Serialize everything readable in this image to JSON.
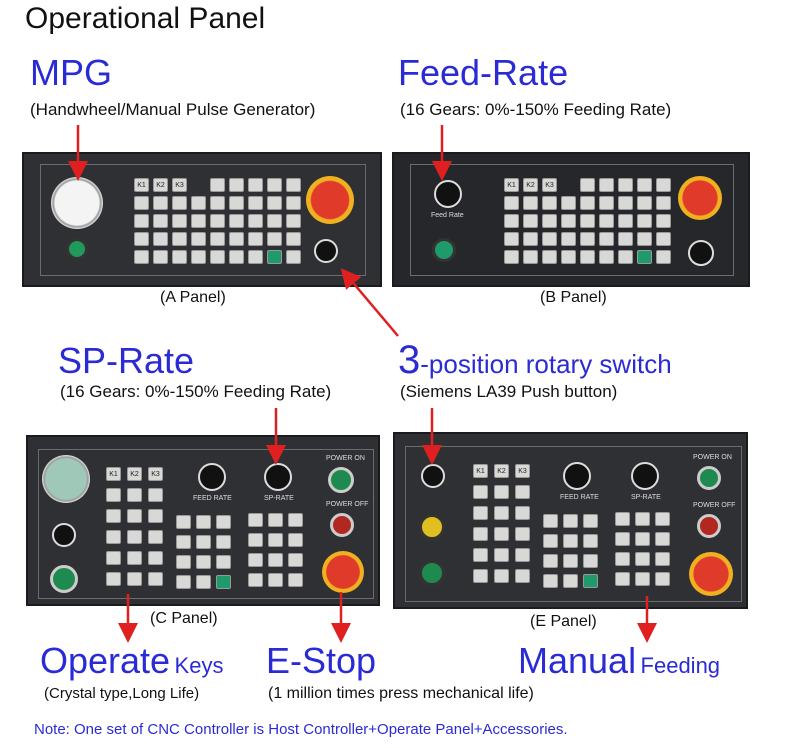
{
  "title": "Operational Panel",
  "annotations": {
    "mpg": {
      "heading": "MPG",
      "sub": "(Handwheel/Manual Pulse Generator)"
    },
    "feed": {
      "heading": "Feed-Rate",
      "sub": "(16 Gears: 0%-150% Feeding Rate)"
    },
    "sp": {
      "heading": "SP-Rate",
      "sub": "(16 Gears: 0%-150% Feeding Rate)"
    },
    "rotary": {
      "num": "3",
      "heading": "-position rotary switch",
      "sub": "(Siemens LA39 Push button)"
    },
    "operate": {
      "heading": "Operate",
      "small": "Keys",
      "sub": "(Crystal type,Long Life)"
    },
    "estop": {
      "heading": "E-Stop",
      "sub": "(1 million times press mechanical life)"
    },
    "manual": {
      "heading": "Manual",
      "small": "Feeding"
    }
  },
  "panels": {
    "a": "(A Panel)",
    "b": "(B Panel)",
    "c": "(C Panel)",
    "e": "(E Panel)"
  },
  "panel_text": {
    "k1": "K1",
    "k2": "K2",
    "k3": "K3",
    "feed_rate": "FEED RATE",
    "sp_rate": "SP-RATE",
    "power_on": "POWER ON",
    "power_off": "POWER OFF",
    "feed_rate_b": "Feed Rate"
  },
  "note": "Note: One set of CNC Controller is Host Controller+Operate Panel+Accessories.",
  "colors": {
    "heading": "#2b2bd6",
    "arrow": "#e02020",
    "panel": "#2f3033"
  }
}
